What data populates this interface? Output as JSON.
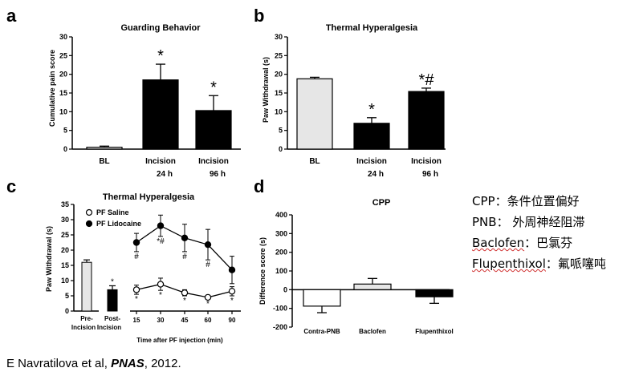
{
  "citation": {
    "prefix": "E Navratilova et al, ",
    "journal": "PNAS",
    "suffix": ", 2012."
  },
  "glossary": [
    {
      "term": "CPP",
      "sep": "：",
      "meaning": "条件位置偏好"
    },
    {
      "term": "PNB",
      "sep": "： ",
      "meaning": "外周神经阻滞"
    },
    {
      "term": "Baclofen",
      "sep": "：",
      "meaning": "巴氯芬"
    },
    {
      "term": "Flupenthixol",
      "sep": "：",
      "meaning": "氟哌噻吨"
    }
  ],
  "chart_data": [
    {
      "panel": "a",
      "type": "bar",
      "title": "Guarding Behavior",
      "ylabel": "Cumulative pain score",
      "ylim": [
        0,
        30
      ],
      "yticks": [
        "0",
        "5",
        "10",
        "15",
        "20",
        "25",
        "30"
      ],
      "categories": [
        [
          "BL"
        ],
        [
          "Incision",
          "24 h"
        ],
        [
          "Incision",
          "96 h"
        ]
      ],
      "values": [
        0.5,
        18.5,
        10.3
      ],
      "errors": [
        0.3,
        4.2,
        4.0
      ],
      "fills": [
        "#e6e6e6",
        "#000000",
        "#000000"
      ],
      "annotations": [
        "",
        "*",
        "*"
      ]
    },
    {
      "panel": "b",
      "type": "bar",
      "title": "Thermal Hyperalgesia",
      "ylabel": "Paw Withdrawal (s)",
      "ylim": [
        0,
        30
      ],
      "yticks": [
        "0",
        "5",
        "10",
        "15",
        "20",
        "25",
        "30"
      ],
      "categories": [
        [
          "BL"
        ],
        [
          "Incision",
          "24 h"
        ],
        [
          "Incision",
          "96 h"
        ]
      ],
      "values": [
        18.8,
        6.9,
        15.4
      ],
      "errors": [
        0.4,
        1.5,
        0.9
      ],
      "fills": [
        "#e6e6e6",
        "#000000",
        "#000000"
      ],
      "annotations": [
        "",
        "*",
        "*#"
      ]
    },
    {
      "panel": "c",
      "type": "line",
      "title": "Thermal Hyperalgesia",
      "ylabel": "Paw Withdrawal (s)",
      "xlabel": "Time after PF injection (min)",
      "ylim": [
        0,
        35
      ],
      "yticks": [
        "0",
        "5",
        "10",
        "15",
        "20",
        "25",
        "30",
        "35"
      ],
      "bar_categories": [
        [
          "Pre-",
          "Incision"
        ],
        [
          "Post-",
          "Incision"
        ]
      ],
      "bar_values": [
        16.0,
        7.0
      ],
      "bar_errors": [
        0.8,
        1.3
      ],
      "bar_fills": [
        "#e6e6e6",
        "#000000"
      ],
      "bar_annotations": [
        "",
        "*"
      ],
      "x": [
        15,
        30,
        45,
        60,
        90
      ],
      "x_labels": [
        "15",
        "30",
        "45",
        "60",
        "90"
      ],
      "series": [
        {
          "name": "PF Saline",
          "values": [
            7.0,
            8.8,
            6.0,
            4.5,
            6.5
          ],
          "errors": [
            1.5,
            2.0,
            1.0,
            0.5,
            1.5
          ],
          "marker": "open",
          "annotations": [
            "*",
            "*",
            "*",
            "*",
            "*"
          ]
        },
        {
          "name": "PF Lidocaine",
          "values": [
            22.5,
            28.0,
            24.0,
            21.8,
            13.5
          ],
          "errors": [
            3.0,
            3.5,
            4.5,
            5.0,
            4.5
          ],
          "marker": "filled",
          "annotations": [
            "#",
            "*#",
            "#",
            "#",
            ""
          ]
        }
      ]
    },
    {
      "panel": "d",
      "type": "bar",
      "title": "CPP",
      "ylabel": "Difference score (s)",
      "ylim": [
        -200,
        400
      ],
      "yticks": [
        "-200",
        "-100",
        "0",
        "100",
        "200",
        "300",
        "400"
      ],
      "categories": [
        [
          "Contra-PNB"
        ],
        [
          "Baclofen"
        ],
        [
          "Flupenthixol"
        ]
      ],
      "values": [
        -88,
        30,
        -38
      ],
      "errors": [
        35,
        30,
        35
      ],
      "fills": [
        "#ffffff",
        "#e6e6e6",
        "#000000"
      ]
    }
  ]
}
